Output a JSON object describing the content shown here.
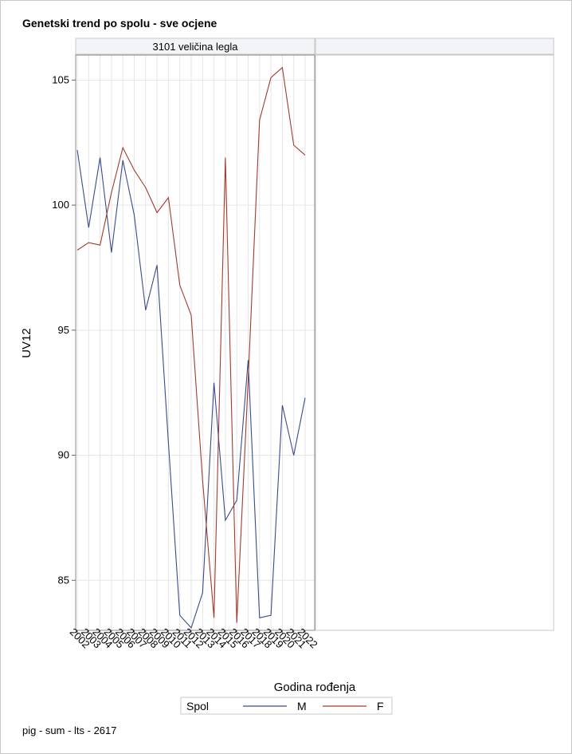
{
  "title": "Genetski trend po spolu - sve ocjene",
  "footnote": "pig - sum - lts - 2617",
  "chart_data": {
    "type": "line",
    "panel_label": "3101 veličina legla",
    "xlabel": "Godina rođenja",
    "ylabel": "UV12",
    "x": [
      "2002",
      "2003",
      "2004",
      "2005",
      "2006",
      "2007",
      "2008",
      "2009",
      "2010",
      "2011",
      "2012",
      "2013",
      "2014",
      "2015",
      "2016",
      "2017",
      "2018",
      "2019",
      "2020",
      "2021",
      "2022"
    ],
    "ylim": [
      83,
      106
    ],
    "yticks": [
      85,
      90,
      95,
      100,
      105
    ],
    "grid": true,
    "legend_title": "Spol",
    "legend_position": "bottom",
    "series": [
      {
        "name": "M",
        "color": "#3b4a8c",
        "values": [
          102.2,
          99.1,
          101.9,
          98.1,
          101.8,
          99.6,
          95.8,
          97.6,
          90.5,
          83.6,
          83.1,
          84.5,
          92.9,
          87.4,
          88.2,
          93.8,
          83.5,
          83.6,
          92.0,
          90.0,
          92.3
        ]
      },
      {
        "name": "F",
        "color": "#a33a2e",
        "values": [
          98.2,
          98.5,
          98.4,
          100.5,
          102.3,
          101.4,
          100.7,
          99.7,
          100.3,
          96.8,
          95.6,
          89.0,
          83.5,
          101.9,
          83.3,
          93.0,
          103.4,
          105.1,
          105.5,
          102.4,
          102.0
        ]
      }
    ]
  }
}
